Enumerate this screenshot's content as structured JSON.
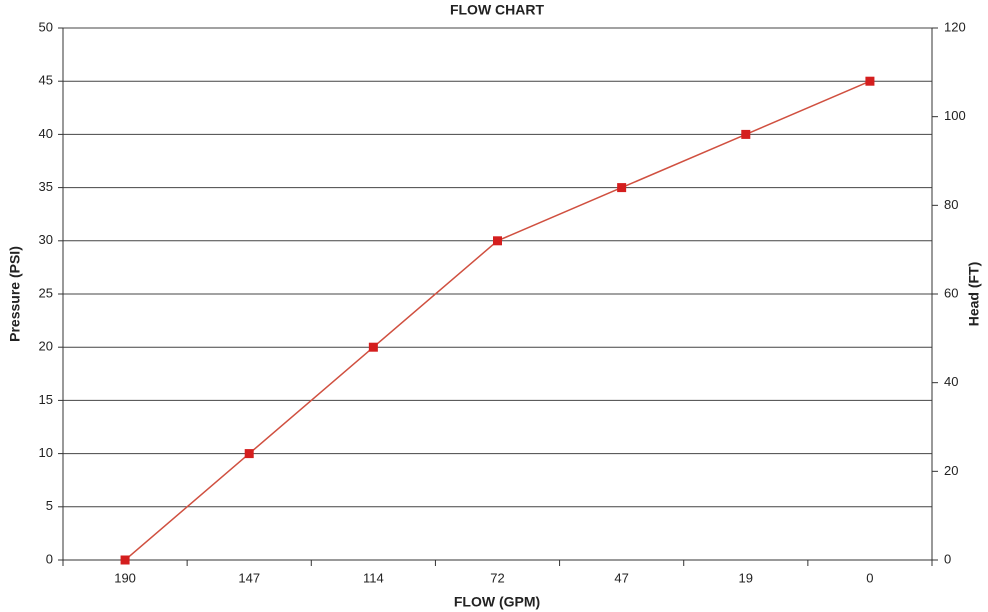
{
  "chart_data": {
    "type": "line",
    "title": "FLOW CHART",
    "x_label": "FLOW (GPM)",
    "y_label": "Pressure (PSI)",
    "y2_label": "Head (FT)",
    "categories": [
      "190",
      "147",
      "114",
      "72",
      "47",
      "19",
      "0"
    ],
    "values": [
      0,
      10,
      20,
      30,
      35,
      40,
      45
    ],
    "color": "#d05040",
    "marker_color": "#d41e1e",
    "ylim": [
      0,
      50
    ],
    "yticks": [
      0,
      5,
      10,
      15,
      20,
      25,
      30,
      35,
      40,
      45,
      50
    ],
    "y2lim": [
      0,
      120
    ],
    "y2ticks": [
      0,
      20,
      40,
      60,
      80,
      100,
      120
    ],
    "grid": true
  }
}
